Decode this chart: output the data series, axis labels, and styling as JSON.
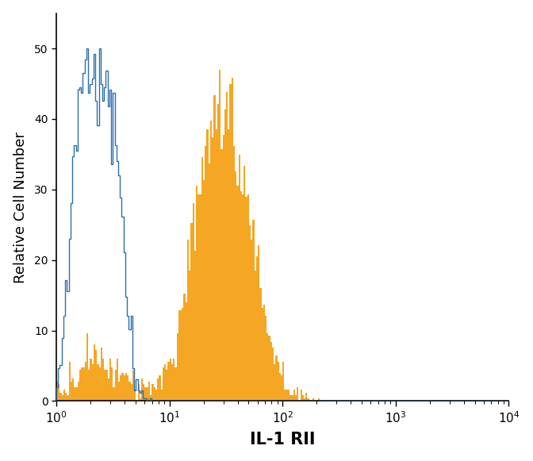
{
  "title": "",
  "xlabel": "IL-1 RII",
  "ylabel": "Relative Cell Number",
  "xlabel_fontsize": 15,
  "ylabel_fontsize": 13,
  "xlim": [
    1,
    10000
  ],
  "ylim": [
    0,
    55
  ],
  "yticks": [
    0,
    10,
    20,
    30,
    40,
    50
  ],
  "orange_color": "#F5A623",
  "blue_color": "#2C6FAC",
  "background_color": "#ffffff",
  "figsize": [
    6.72,
    5.81
  ],
  "dpi": 100
}
